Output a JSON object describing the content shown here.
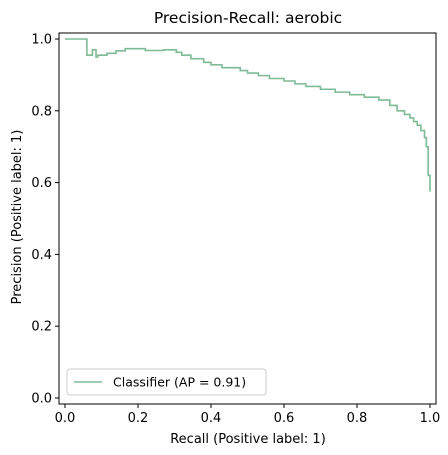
{
  "chart_data": {
    "type": "line",
    "title": "Precision-Recall: aerobic",
    "xlabel": "Recall (Positive label: 1)",
    "ylabel": "Precision (Positive label: 1)",
    "xlim": [
      0,
      1
    ],
    "ylim": [
      0,
      1
    ],
    "xticks": [
      "0.0",
      "0.2",
      "0.4",
      "0.6",
      "0.8",
      "1.0"
    ],
    "yticks": [
      "0.0",
      "0.2",
      "0.4",
      "0.6",
      "0.8",
      "1.0"
    ],
    "grid": false,
    "legend_position": "lower-left",
    "series": [
      {
        "name": "Classifier (AP = 0.91)",
        "color": "#7dbb95",
        "drawstyle": "steps-post",
        "x": [
          0.0,
          0.055,
          0.06,
          0.075,
          0.085,
          0.09,
          0.115,
          0.14,
          0.165,
          0.22,
          0.27,
          0.305,
          0.32,
          0.345,
          0.38,
          0.4,
          0.43,
          0.48,
          0.5,
          0.53,
          0.56,
          0.6,
          0.63,
          0.66,
          0.7,
          0.74,
          0.78,
          0.82,
          0.86,
          0.89,
          0.91,
          0.93,
          0.945,
          0.955,
          0.965,
          0.975,
          0.985,
          0.99,
          0.995,
          1.0
        ],
        "y": [
          1.0,
          1.0,
          0.955,
          0.97,
          0.95,
          0.955,
          0.96,
          0.967,
          0.973,
          0.968,
          0.97,
          0.963,
          0.955,
          0.945,
          0.935,
          0.928,
          0.92,
          0.912,
          0.905,
          0.898,
          0.89,
          0.883,
          0.875,
          0.868,
          0.86,
          0.852,
          0.845,
          0.838,
          0.83,
          0.815,
          0.8,
          0.79,
          0.78,
          0.77,
          0.76,
          0.745,
          0.725,
          0.7,
          0.62,
          0.575
        ]
      }
    ]
  }
}
